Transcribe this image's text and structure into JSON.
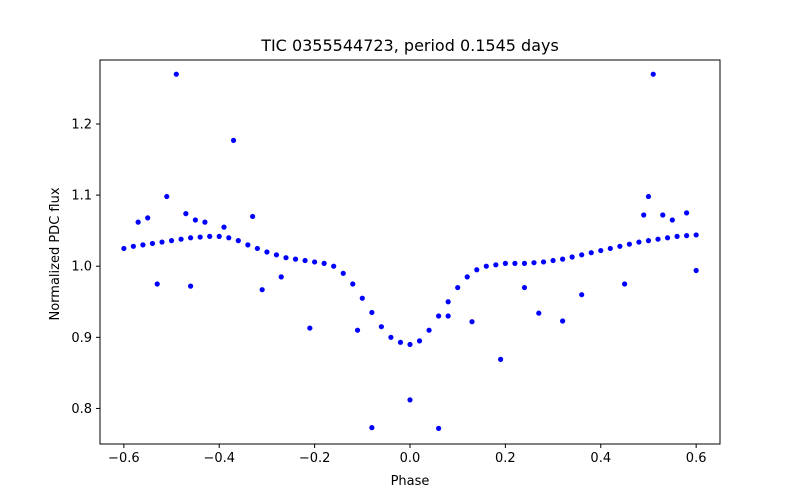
{
  "chart_data": {
    "type": "scatter",
    "title": "TIC 0355544723, period 0.1545 days",
    "xlabel": "Phase",
    "ylabel": "Normalized PDC flux",
    "xlim": [
      -0.65,
      0.65
    ],
    "ylim": [
      0.75,
      1.29
    ],
    "xticks": [
      -0.6,
      -0.4,
      -0.2,
      0.0,
      0.2,
      0.4,
      0.6
    ],
    "xtick_labels": [
      "−0.6",
      "−0.4",
      "−0.2",
      "0.0",
      "0.2",
      "0.4",
      "0.6"
    ],
    "yticks": [
      0.8,
      0.9,
      1.0,
      1.1,
      1.2
    ],
    "ytick_labels": [
      "0.8",
      "0.9",
      "1.0",
      "1.1",
      "1.2"
    ],
    "grid": false,
    "marker_color": "#0000ff",
    "series": [
      {
        "x": [
          -0.6,
          -0.58,
          -0.56,
          -0.54,
          -0.52,
          -0.5,
          -0.48,
          -0.46,
          -0.44,
          -0.42,
          -0.4,
          -0.38,
          -0.36,
          -0.34,
          -0.32,
          -0.3,
          -0.28,
          -0.26,
          -0.24,
          -0.22,
          -0.2,
          -0.18,
          -0.16,
          -0.14,
          -0.12,
          -0.1,
          -0.08,
          -0.06,
          -0.04,
          -0.02,
          0.0,
          0.02,
          0.04,
          0.06,
          0.08,
          0.1,
          0.12,
          0.14,
          0.16,
          0.18,
          0.2,
          0.22,
          0.24,
          0.26,
          0.28,
          0.3,
          0.32,
          0.34,
          0.36,
          0.38,
          0.4,
          0.42,
          0.44,
          0.46,
          0.48,
          0.5,
          0.52,
          0.54,
          0.56,
          0.58,
          0.6,
          -0.49,
          -0.37,
          -0.51,
          -0.47,
          -0.45,
          -0.43,
          -0.39,
          -0.33,
          -0.55,
          -0.46,
          -0.21,
          -0.08,
          0.0,
          0.06,
          0.19,
          0.32,
          0.27,
          0.51,
          0.5,
          0.49,
          0.53,
          0.55,
          0.58,
          0.45,
          0.6,
          -0.57,
          -0.53,
          0.13,
          -0.31,
          -0.27,
          -0.11,
          0.08,
          0.24,
          0.36
        ],
        "y": [
          1.025,
          1.028,
          1.03,
          1.032,
          1.034,
          1.036,
          1.038,
          1.04,
          1.041,
          1.042,
          1.042,
          1.04,
          1.036,
          1.03,
          1.025,
          1.02,
          1.016,
          1.012,
          1.01,
          1.008,
          1.006,
          1.004,
          1.0,
          0.99,
          0.975,
          0.955,
          0.935,
          0.915,
          0.9,
          0.893,
          0.89,
          0.895,
          0.91,
          0.93,
          0.95,
          0.97,
          0.985,
          0.995,
          1.0,
          1.002,
          1.004,
          1.004,
          1.004,
          1.005,
          1.006,
          1.008,
          1.01,
          1.013,
          1.016,
          1.019,
          1.022,
          1.025,
          1.028,
          1.031,
          1.034,
          1.036,
          1.038,
          1.04,
          1.042,
          1.043,
          1.044,
          1.27,
          1.177,
          1.098,
          1.074,
          1.065,
          1.062,
          1.055,
          1.07,
          1.068,
          0.972,
          0.913,
          0.773,
          0.812,
          0.772,
          0.869,
          0.923,
          0.934,
          1.27,
          1.098,
          1.072,
          1.072,
          1.065,
          1.075,
          0.975,
          0.994,
          1.062,
          0.975,
          0.922,
          0.967,
          0.985,
          0.91,
          0.93,
          0.97,
          0.96
        ]
      }
    ]
  }
}
